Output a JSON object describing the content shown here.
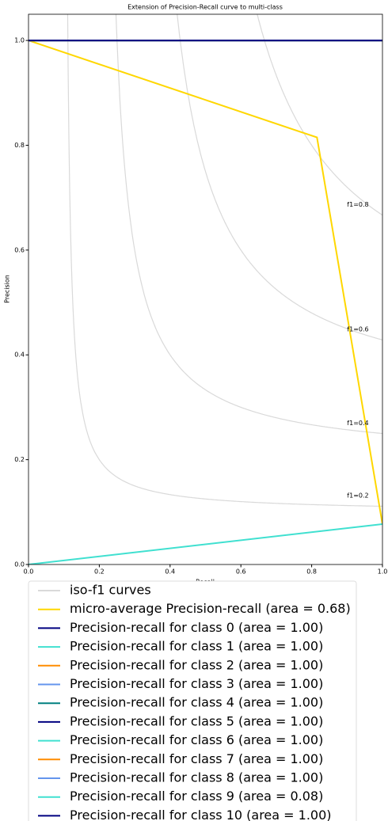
{
  "chart_data": {
    "type": "line",
    "title": "Extension of Precision-Recall curve to multi-class",
    "x_label": "Recall",
    "y_label": "Precision",
    "xlim": [
      0,
      1
    ],
    "ylim": [
      0,
      1.05
    ],
    "xticks": [
      {
        "value": 0,
        "label": "0.0"
      },
      {
        "value": 0.2,
        "label": "0.2"
      },
      {
        "value": 0.4,
        "label": "0.4"
      },
      {
        "value": 0.6,
        "label": "0.6"
      },
      {
        "value": 0.8,
        "label": "0.8"
      },
      {
        "value": 1,
        "label": "1.0"
      }
    ],
    "yticks": [
      {
        "value": 0,
        "label": "0.0"
      },
      {
        "value": 0.2,
        "label": "0.2"
      },
      {
        "value": 0.4,
        "label": "0.4"
      },
      {
        "value": 0.6,
        "label": "0.6"
      },
      {
        "value": 0.8,
        "label": "0.8"
      },
      {
        "value": 1,
        "label": "1.0"
      }
    ],
    "iso_f1": {
      "name": "iso-f1 curves",
      "color": "#d9d9d9",
      "levels": [
        {
          "value": 0.2,
          "label": "f1=0.2"
        },
        {
          "value": 0.4,
          "label": "f1=0.4"
        },
        {
          "value": 0.6,
          "label": "f1=0.6"
        },
        {
          "value": 0.8,
          "label": "f1=0.8"
        }
      ]
    },
    "series": [
      {
        "name": "micro-average Precision-recall (area = 0.68)",
        "color": "#ffd700",
        "x": [
          0,
          0.815,
          1
        ],
        "values": [
          1,
          0.815,
          0.077
        ]
      },
      {
        "name": "Precision-recall for class 0 (area = 1.00)",
        "color": "#000080",
        "x": [
          0,
          1
        ],
        "values": [
          1,
          1
        ]
      },
      {
        "name": "Precision-recall for class 1 (area = 1.00)",
        "color": "#40e0d0",
        "x": [
          0,
          1
        ],
        "values": [
          1,
          1
        ]
      },
      {
        "name": "Precision-recall for class 2 (area = 1.00)",
        "color": "#ff8c00",
        "x": [
          0,
          1
        ],
        "values": [
          1,
          1
        ]
      },
      {
        "name": "Precision-recall for class 3 (area = 1.00)",
        "color": "#6495ed",
        "x": [
          0,
          1
        ],
        "values": [
          1,
          1
        ]
      },
      {
        "name": "Precision-recall for class 4 (area = 1.00)",
        "color": "#008080",
        "x": [
          0,
          1
        ],
        "values": [
          1,
          1
        ]
      },
      {
        "name": "Precision-recall for class 5 (area = 1.00)",
        "color": "#000080",
        "x": [
          0,
          1
        ],
        "values": [
          1,
          1
        ]
      },
      {
        "name": "Precision-recall for class 6 (area = 1.00)",
        "color": "#40e0d0",
        "x": [
          0,
          1
        ],
        "values": [
          1,
          1
        ]
      },
      {
        "name": "Precision-recall for class 7 (area = 1.00)",
        "color": "#ff8c00",
        "x": [
          0,
          1
        ],
        "values": [
          1,
          1
        ]
      },
      {
        "name": "Precision-recall for class 8 (area = 1.00)",
        "color": "#6495ed",
        "x": [
          0,
          1
        ],
        "values": [
          1,
          1
        ]
      },
      {
        "name": "Precision-recall for class 9 (area = 0.08)",
        "color": "#40e0d0",
        "x": [
          0,
          1
        ],
        "values": [
          0,
          0.077
        ]
      },
      {
        "name": "Precision-recall for class 10 (area = 1.00)",
        "color": "#000080",
        "x": [
          0,
          1
        ],
        "values": [
          1,
          1
        ]
      }
    ]
  }
}
